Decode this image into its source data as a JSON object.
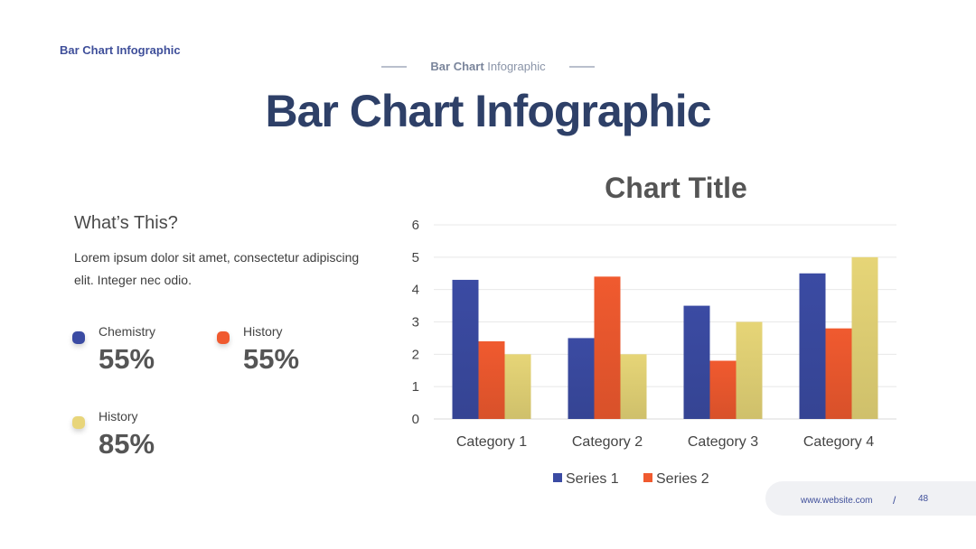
{
  "header": {
    "brand": "Bar Chart  Infographic",
    "subtitle_strong": "Bar Chart",
    "subtitle_rest": " Infographic",
    "title": "Bar Chart Infographic"
  },
  "info": {
    "heading": "What’s This?",
    "body": "Lorem ipsum dolor sit amet, consectetur adipiscing elit. Integer nec odio."
  },
  "stats": [
    {
      "label": "Chemistry",
      "value": "55%",
      "color": "#3b4ba3"
    },
    {
      "label": "History",
      "value": "55%",
      "color": "#f05a2f"
    },
    {
      "label": "History",
      "value": "85%",
      "color": "#e8d57a"
    }
  ],
  "footer": {
    "url": "www.website.com",
    "separator": "/",
    "page": "48"
  },
  "chart_data": {
    "type": "bar",
    "title": "Chart Title",
    "categories": [
      "Category 1",
      "Category 2",
      "Category 3",
      "Category 4"
    ],
    "series": [
      {
        "name": "Series 1",
        "values": [
          4.3,
          2.5,
          3.5,
          4.5
        ],
        "color": "#3b4ba3"
      },
      {
        "name": "Series 2",
        "values": [
          2.4,
          4.4,
          1.8,
          2.8
        ],
        "color": "#f05a2f"
      },
      {
        "name": "",
        "values": [
          2.0,
          2.0,
          3.0,
          5.0
        ],
        "color": "#e6d577"
      }
    ],
    "ylim": [
      0,
      6
    ],
    "yticks": [
      "0",
      "1",
      "2",
      "3",
      "4",
      "5",
      "6"
    ],
    "grid": true,
    "legend_position": "bottom"
  }
}
